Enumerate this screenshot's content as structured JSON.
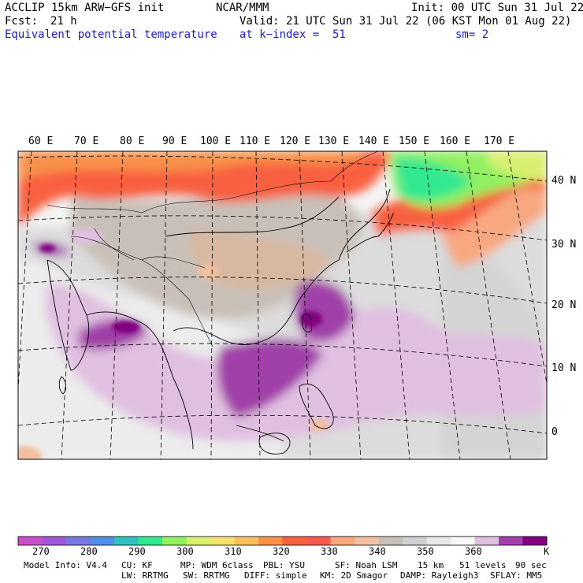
{
  "header": {
    "model": "ACCLIP 15km ARW−GFS init",
    "org": "NCAR/MMM",
    "init": "Init: 00 UTC Sun 31 Jul 22",
    "fcst_label": "Fcst:",
    "fcst_value": "21 h",
    "valid": "Valid: 21 UTC Sun 31 Jul 22 (06 KST Mon 01 Aug 22)",
    "field": "Equivalent potential temperature",
    "level": "at k−index =  51",
    "smooth": "sm= 2"
  },
  "map": {
    "lon_labels": [
      "60 E",
      "70 E",
      "80 E",
      "90 E",
      "100 E",
      "110 E",
      "120 E",
      "130 E",
      "140 E",
      "150 E",
      "160 E",
      "170 E"
    ],
    "lat_labels": [
      "40 N",
      "30 N",
      "20 N",
      "10 N",
      "0"
    ]
  },
  "colorbar": {
    "labels": [
      "270",
      "280",
      "290",
      "300",
      "310",
      "320",
      "330",
      "340",
      "350",
      "360"
    ],
    "unit": "K",
    "colors": [
      "#c850c8",
      "#a058d8",
      "#7878e0",
      "#5090e8",
      "#30c0c0",
      "#30e890",
      "#90f060",
      "#d8f070",
      "#f8e070",
      "#f8c060",
      "#f89048",
      "#f86040",
      "#f85850",
      "#f8a880",
      "#f0c0a0",
      "#c8c0b8",
      "#d0d0d0",
      "#e8e8e8",
      "#f8f8f8",
      "#e0c0e0",
      "#a040a8",
      "#800080"
    ]
  },
  "footer": {
    "line1": [
      "Model Info: V4.4",
      "CU: KF",
      "MP: WDM 6class",
      "PBL: YSU",
      "SF: Noah LSM",
      "15 km",
      "51 levels",
      "90 sec"
    ],
    "line2": [
      "LW: RRTMG",
      "SW: RRTMG",
      "DIFF: simple",
      "KM: 2D Smagor",
      "DAMP: Rayleigh3",
      "SFLAY: MM5"
    ]
  }
}
